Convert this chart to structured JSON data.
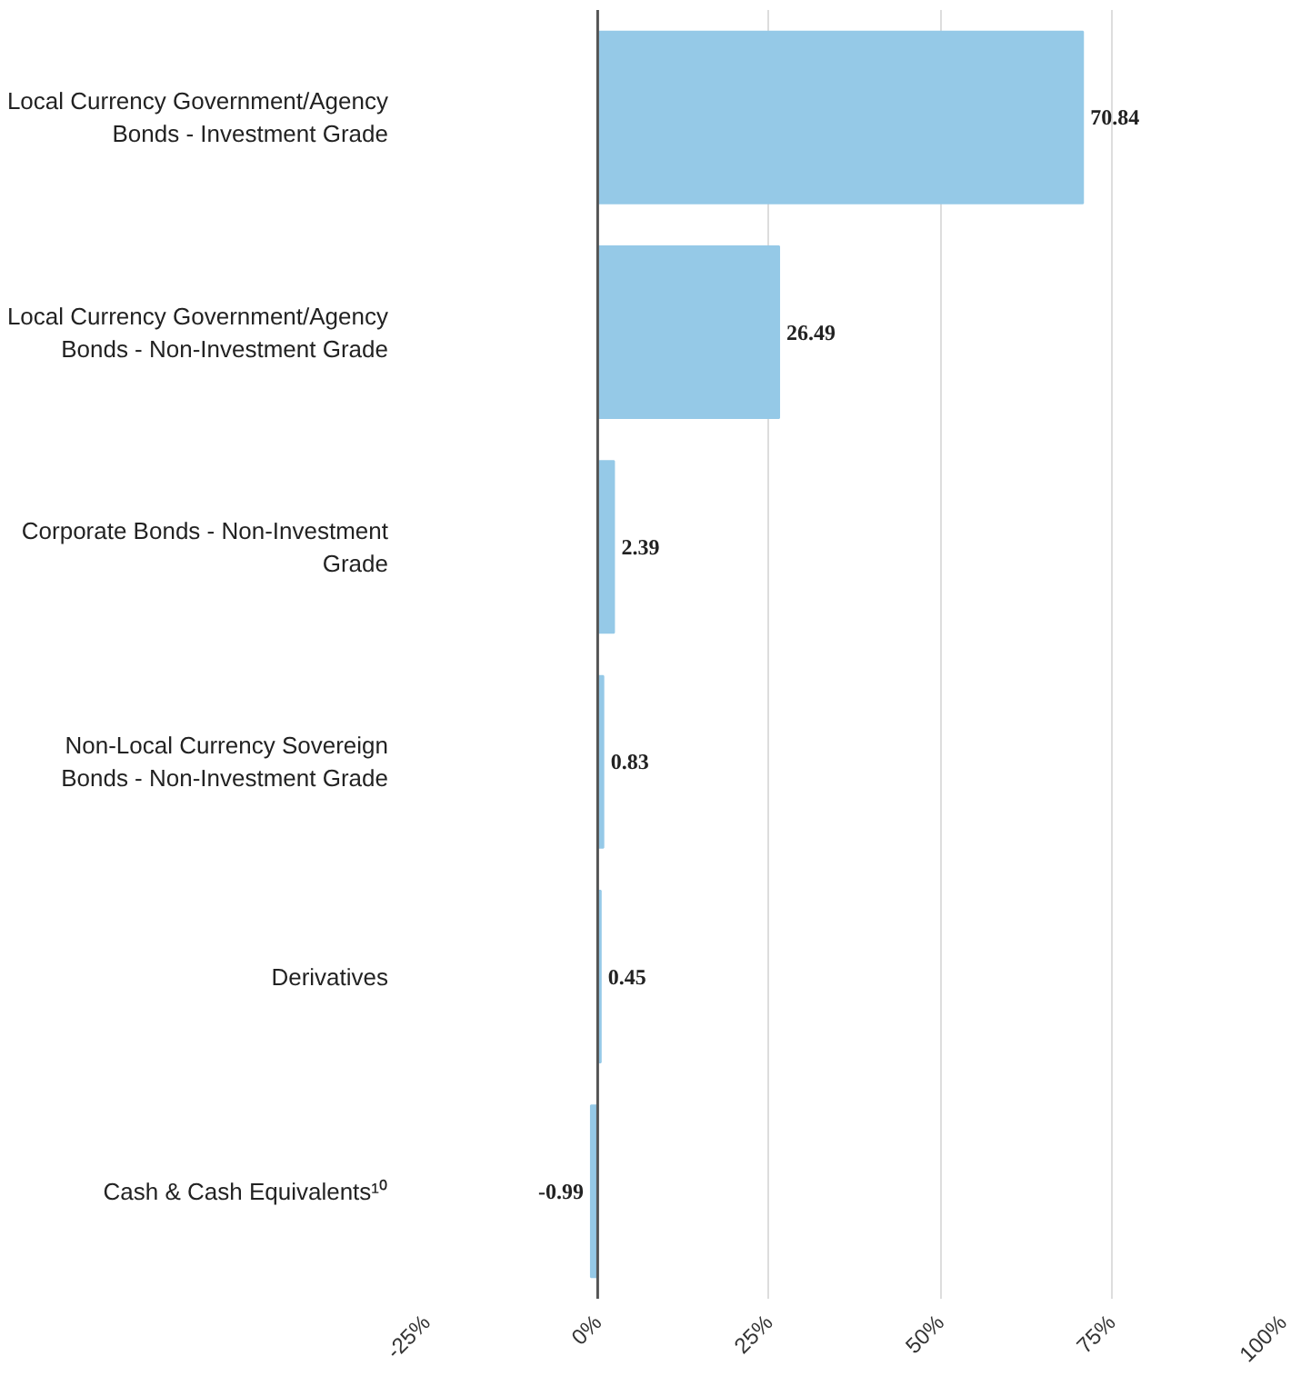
{
  "chart_data": {
    "type": "bar",
    "orientation": "horizontal",
    "categories": [
      "Local Currency Government/Agency Bonds - Investment Grade",
      "Local Currency Government/Agency Bonds - Non-Investment Grade",
      "Corporate Bonds - Non-Investment Grade",
      "Non-Local Currency Sovereign Bonds - Non-Investment Grade",
      "Derivatives",
      "Cash & Cash Equivalents¹⁰"
    ],
    "values": [
      70.84,
      26.49,
      2.39,
      0.83,
      0.45,
      -0.99
    ],
    "color": "#95c9e7",
    "data_labels": true,
    "xlim": [
      -25,
      100
    ],
    "xticks": [
      {
        "value": -25,
        "label": "-25%"
      },
      {
        "value": 0,
        "label": "0%"
      },
      {
        "value": 25,
        "label": "25%"
      },
      {
        "value": 50,
        "label": "50%"
      },
      {
        "value": 75,
        "label": "75%"
      },
      {
        "value": 100,
        "label": "100%"
      }
    ],
    "grid": "x",
    "ref_lines": [
      {
        "axis": "x",
        "value": 0,
        "color": "#555555"
      }
    ]
  }
}
